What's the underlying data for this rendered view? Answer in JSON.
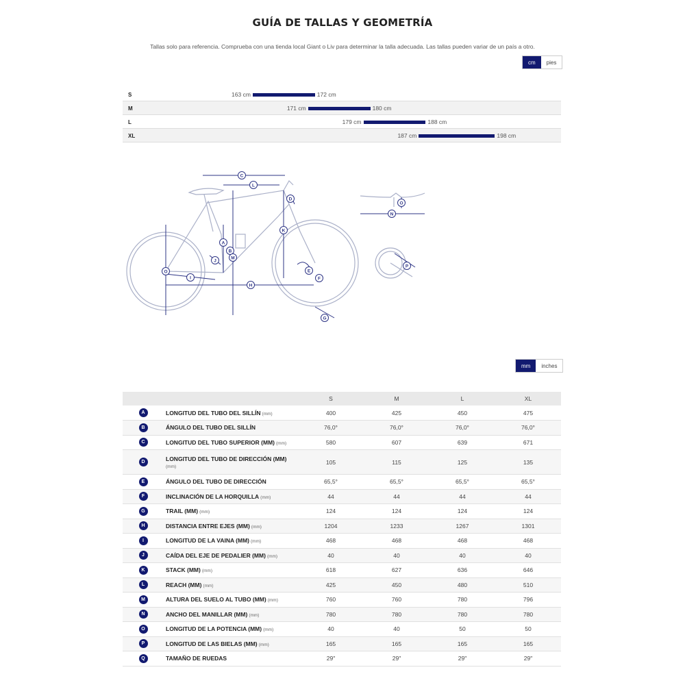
{
  "page": {
    "title": "GUÍA DE TALLAS Y GEOMETRÍA",
    "subtitle": "Tallas solo para referencia. Comprueba con una tienda local Giant o Liv para determinar la talla adecuada. Las tallas pueden variar de un país a otro."
  },
  "unit_toggle_height": {
    "cm": "cm",
    "feet": "pies",
    "active": "cm"
  },
  "unit_toggle_geometry": {
    "mm": "mm",
    "inches": "inches",
    "active": "mm"
  },
  "colors": {
    "accent": "#121a70",
    "row_alt": "#f2f2f2",
    "line": "#aab0c8"
  },
  "size_chart": {
    "rows": [
      {
        "size": "S",
        "min": "163 cm",
        "max": "172 cm",
        "lo": 163,
        "hi": 172
      },
      {
        "size": "M",
        "min": "171 cm",
        "max": "180 cm",
        "lo": 171,
        "hi": 180
      },
      {
        "size": "L",
        "min": "179 cm",
        "max": "188 cm",
        "lo": 179,
        "hi": 188
      },
      {
        "size": "XL",
        "min": "187 cm",
        "max": "198 cm",
        "lo": 187,
        "hi": 198
      }
    ]
  },
  "diagram_letters": [
    "A",
    "B",
    "C",
    "D",
    "E",
    "F",
    "G",
    "H",
    "I",
    "J",
    "K",
    "L",
    "M",
    "N",
    "O",
    "P",
    "Q"
  ],
  "geometry": {
    "columns": [
      "S",
      "M",
      "L",
      "XL"
    ],
    "rows": [
      {
        "letter": "A",
        "label": "LONGITUD DEL TUBO DEL SILLÍN",
        "unit": "(mm)",
        "values": [
          "400",
          "425",
          "450",
          "475"
        ]
      },
      {
        "letter": "B",
        "label": "ÁNGULO DEL TUBO DEL SILLÍN",
        "unit": "",
        "values": [
          "76,0°",
          "76,0°",
          "76,0°",
          "76,0°"
        ]
      },
      {
        "letter": "C",
        "label": "LONGITUD DEL TUBO SUPERIOR (MM)",
        "unit": "(mm)",
        "values": [
          "580",
          "607",
          "639",
          "671"
        ]
      },
      {
        "letter": "D",
        "label": "LONGITUD DEL TUBO DE DIRECCIÓN (MM)",
        "unit": "(mm)",
        "values": [
          "105",
          "115",
          "125",
          "135"
        ]
      },
      {
        "letter": "E",
        "label": "ÁNGULO DEL TUBO DE DIRECCIÓN",
        "unit": "",
        "values": [
          "65,5°",
          "65,5°",
          "65,5°",
          "65,5°"
        ]
      },
      {
        "letter": "F",
        "label": "INCLINACIÓN DE LA HORQUILLA",
        "unit": "(mm)",
        "values": [
          "44",
          "44",
          "44",
          "44"
        ]
      },
      {
        "letter": "G",
        "label": "TRAIL (MM)",
        "unit": "(mm)",
        "values": [
          "124",
          "124",
          "124",
          "124"
        ]
      },
      {
        "letter": "H",
        "label": "DISTANCIA ENTRE EJES (MM)",
        "unit": "(mm)",
        "values": [
          "1204",
          "1233",
          "1267",
          "1301"
        ]
      },
      {
        "letter": "I",
        "label": "LONGITUD DE LA VAINA (MM)",
        "unit": "(mm)",
        "values": [
          "468",
          "468",
          "468",
          "468"
        ]
      },
      {
        "letter": "J",
        "label": "CAÍDA DEL EJE DE PEDALIER (MM)",
        "unit": "(mm)",
        "values": [
          "40",
          "40",
          "40",
          "40"
        ]
      },
      {
        "letter": "K",
        "label": "STACK (MM)",
        "unit": "(mm)",
        "values": [
          "618",
          "627",
          "636",
          "646"
        ]
      },
      {
        "letter": "L",
        "label": "REACH (MM)",
        "unit": "(mm)",
        "values": [
          "425",
          "450",
          "480",
          "510"
        ]
      },
      {
        "letter": "M",
        "label": "ALTURA DEL SUELO AL TUBO (MM)",
        "unit": "(mm)",
        "values": [
          "760",
          "760",
          "780",
          "796"
        ]
      },
      {
        "letter": "N",
        "label": "ANCHO DEL MANILLAR (MM)",
        "unit": "(mm)",
        "values": [
          "780",
          "780",
          "780",
          "780"
        ]
      },
      {
        "letter": "O",
        "label": "LONGITUD DE LA POTENCIA (MM)",
        "unit": "(mm)",
        "values": [
          "40",
          "40",
          "50",
          "50"
        ]
      },
      {
        "letter": "P",
        "label": "LONGITUD DE LAS BIELAS (MM)",
        "unit": "(mm)",
        "values": [
          "165",
          "165",
          "165",
          "165"
        ]
      },
      {
        "letter": "Q",
        "label": "TAMAÑO DE RUEDAS",
        "unit": "",
        "values": [
          "29\"",
          "29\"",
          "29\"",
          "29\""
        ]
      }
    ]
  }
}
